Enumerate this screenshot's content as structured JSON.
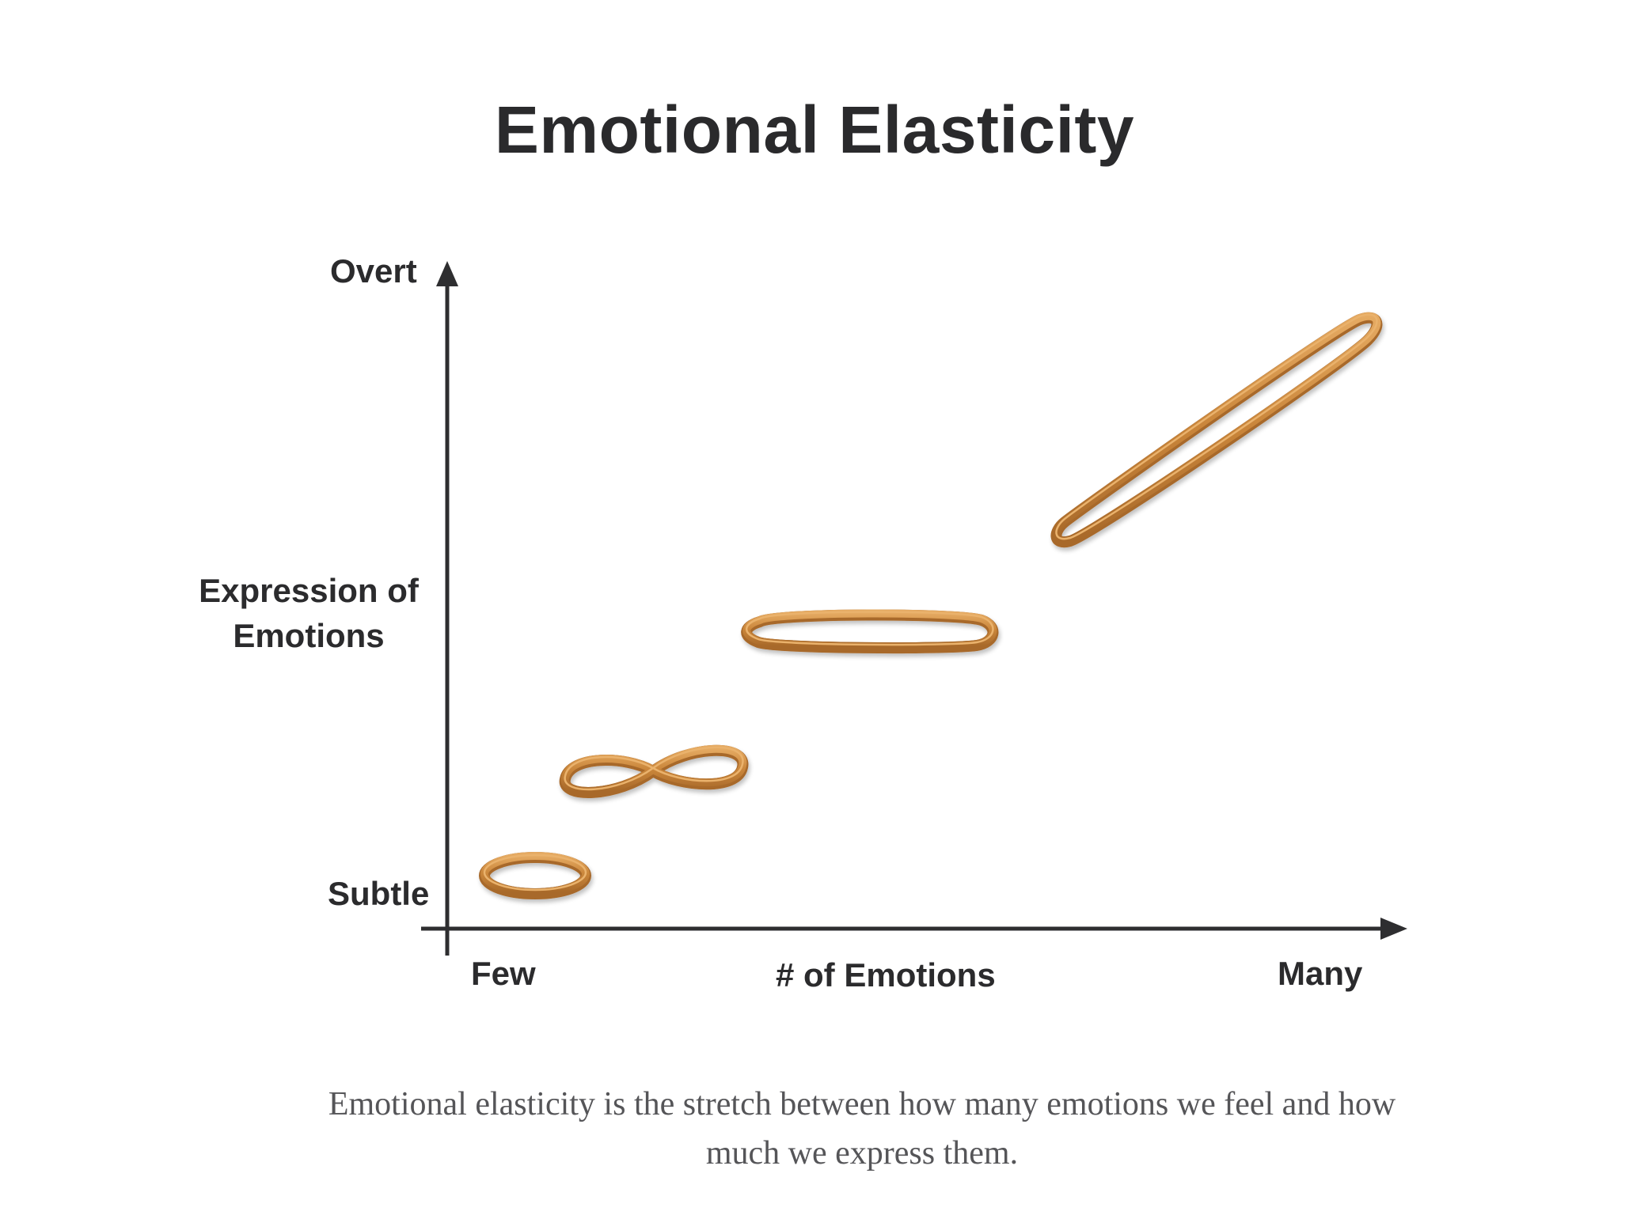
{
  "title": "Emotional Elasticity",
  "axes": {
    "y_top_label": "Overt",
    "y_bottom_label": "Subtle",
    "y_title": "Expression of Emotions",
    "x_left_label": "Few",
    "x_title": "# of Emotions",
    "x_right_label": "Many"
  },
  "stages": [
    {
      "shape": "loose-loop"
    },
    {
      "shape": "twisted-figure-eight"
    },
    {
      "shape": "stretched-oval"
    },
    {
      "shape": "fully-stretched-band"
    }
  ],
  "caption": "Emotional elasticity is the stretch between how many emotions we feel and how much we express them.",
  "colors": {
    "band_outer": "#c9853a",
    "band_inner": "#e3a75c",
    "band_shadow": "#9a5f22",
    "axis": "#2e2e30",
    "text": "#2b2b2d",
    "caption_text": "#555558"
  }
}
